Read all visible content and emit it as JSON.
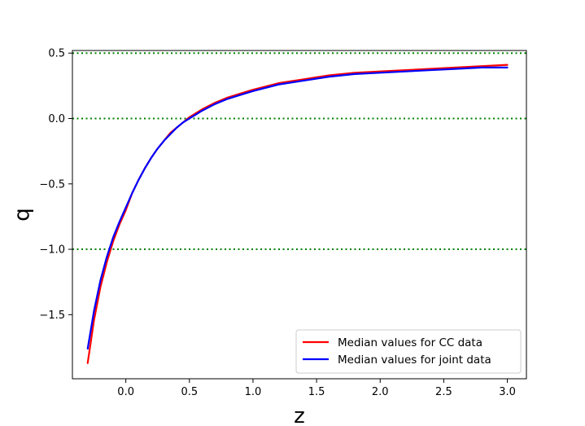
{
  "chart_data": {
    "type": "line",
    "title": "",
    "xlabel": "z",
    "ylabel": "q",
    "xlim": [
      -0.42,
      3.15
    ],
    "ylim": [
      -1.99,
      0.52
    ],
    "xticks": [
      0.0,
      0.5,
      1.0,
      1.5,
      2.0,
      2.5,
      3.0
    ],
    "xtick_labels": [
      "0.0",
      "0.5",
      "1.0",
      "1.5",
      "2.0",
      "2.5",
      "3.0"
    ],
    "yticks": [
      0.5,
      0.0,
      -0.5,
      -1.0,
      -1.5
    ],
    "ytick_labels": [
      "0.5",
      "0.0",
      "−0.5",
      "−1.0",
      "−1.5"
    ],
    "reference_lines": {
      "y": [
        0.5,
        0.0,
        -1.0
      ],
      "color": "#008000",
      "style": "dotted"
    },
    "grid": false,
    "legend_position": "lower-right",
    "series": [
      {
        "name": "Median values for CC data",
        "color": "#ff0000",
        "x": [
          -0.3,
          -0.25,
          -0.2,
          -0.15,
          -0.1,
          -0.05,
          0.0,
          0.05,
          0.1,
          0.15,
          0.2,
          0.25,
          0.3,
          0.35,
          0.4,
          0.45,
          0.5,
          0.55,
          0.6,
          0.7,
          0.8,
          0.9,
          1.0,
          1.2,
          1.4,
          1.6,
          1.8,
          2.0,
          2.2,
          2.4,
          2.6,
          2.8,
          3.0
        ],
        "y": [
          -1.87,
          -1.54,
          -1.29,
          -1.1,
          -0.94,
          -0.81,
          -0.7,
          -0.57,
          -0.47,
          -0.38,
          -0.3,
          -0.23,
          -0.17,
          -0.11,
          -0.07,
          -0.03,
          0.01,
          0.04,
          0.07,
          0.12,
          0.16,
          0.19,
          0.22,
          0.27,
          0.3,
          0.33,
          0.35,
          0.36,
          0.37,
          0.38,
          0.39,
          0.4,
          0.41
        ]
      },
      {
        "name": "Median values for joint data",
        "color": "#0000ff",
        "x": [
          -0.3,
          -0.25,
          -0.2,
          -0.15,
          -0.1,
          -0.05,
          0.0,
          0.05,
          0.1,
          0.15,
          0.2,
          0.25,
          0.3,
          0.35,
          0.4,
          0.45,
          0.5,
          0.55,
          0.6,
          0.7,
          0.8,
          0.9,
          1.0,
          1.2,
          1.4,
          1.6,
          1.8,
          2.0,
          2.2,
          2.4,
          2.6,
          2.8,
          3.0
        ],
        "y": [
          -1.76,
          -1.47,
          -1.24,
          -1.06,
          -0.91,
          -0.79,
          -0.68,
          -0.57,
          -0.47,
          -0.38,
          -0.3,
          -0.23,
          -0.17,
          -0.12,
          -0.07,
          -0.03,
          0.0,
          0.03,
          0.06,
          0.11,
          0.15,
          0.18,
          0.21,
          0.26,
          0.29,
          0.32,
          0.34,
          0.35,
          0.36,
          0.37,
          0.38,
          0.39,
          0.39
        ]
      }
    ]
  }
}
